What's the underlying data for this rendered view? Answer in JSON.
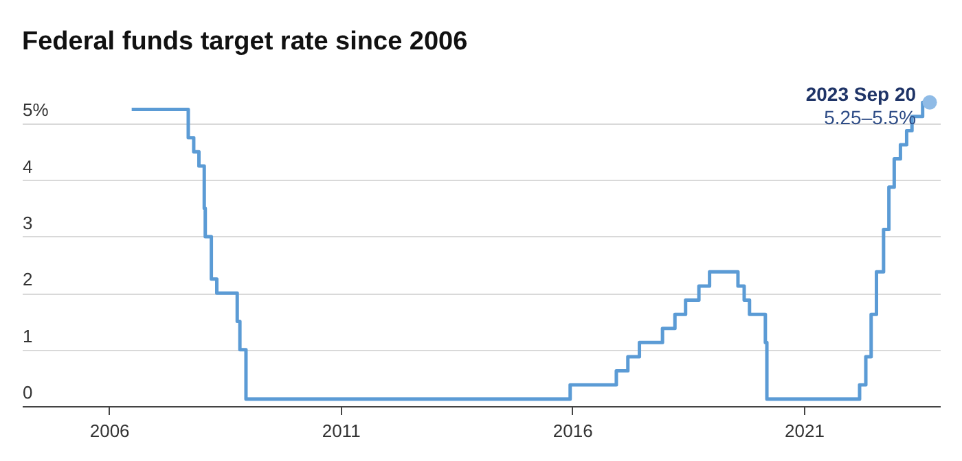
{
  "chart_data": {
    "type": "step",
    "title": "Federal funds target rate since 2006",
    "x": [
      "2006-06-29",
      "2007-09-18",
      "2007-10-31",
      "2007-12-11",
      "2008-01-22",
      "2008-01-30",
      "2008-03-18",
      "2008-04-30",
      "2008-10-08",
      "2008-10-29",
      "2008-12-16",
      "2015-12-16",
      "2016-12-14",
      "2017-03-15",
      "2017-06-14",
      "2017-12-13",
      "2018-03-21",
      "2018-06-13",
      "2018-09-26",
      "2018-12-19",
      "2019-07-31",
      "2019-09-18",
      "2019-10-30",
      "2020-03-03",
      "2020-03-15",
      "2022-03-16",
      "2022-05-04",
      "2022-06-15",
      "2022-07-27",
      "2022-09-21",
      "2022-11-02",
      "2022-12-14",
      "2023-02-01",
      "2023-03-22",
      "2023-05-03",
      "2023-07-26",
      "2023-09-20"
    ],
    "series": [
      {
        "color": "#5b9bd5",
        "values": [
          5.25,
          4.75,
          4.5,
          4.25,
          3.5,
          3.0,
          2.25,
          2.0,
          1.5,
          1.0,
          0.125,
          0.375,
          0.625,
          0.875,
          1.125,
          1.375,
          1.625,
          1.875,
          2.125,
          2.375,
          2.125,
          1.875,
          1.625,
          1.125,
          0.125,
          0.375,
          0.875,
          1.625,
          2.375,
          3.125,
          3.875,
          4.375,
          4.625,
          4.875,
          5.125,
          5.375,
          5.375
        ]
      },
      {
        "type": "scatter",
        "color": "#8fbbe6",
        "marker": "circle",
        "x": [
          "2023-09-20"
        ],
        "values": [
          5.375
        ]
      }
    ],
    "xlim": [
      "2004-02-15",
      "2023-12-10"
    ],
    "xticks": [
      "2006",
      "2011",
      "2016",
      "2021"
    ],
    "ylim": [
      0,
      5.9
    ],
    "yticks": [
      0,
      1,
      2,
      3,
      4,
      {
        "value": 5,
        "label": "5%"
      }
    ],
    "grid": "y",
    "annotations": [
      {
        "text": "2023 Sep 20",
        "x": "2023-09-20",
        "y": 5.375
      },
      {
        "text": "5.25–5.5%",
        "x": "2023-09-20",
        "y": 5.375
      }
    ]
  }
}
